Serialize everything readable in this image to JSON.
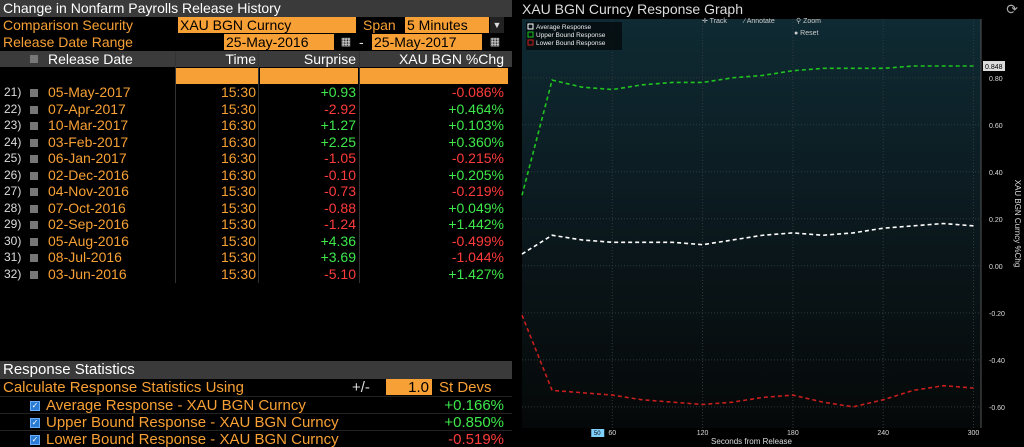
{
  "left_panel": {
    "title": "Change in Nonfarm Payrolls Release History",
    "comparison_label": "Comparison Security",
    "comparison_value": "XAU BGN Curncy",
    "span_label": "Span",
    "span_value": "5 Minutes",
    "range_label": "Release Date Range",
    "range_start": "25-May-2016",
    "range_sep": "-",
    "range_end": "25-May-2017",
    "columns": [
      "Release Date",
      "Time",
      "Surprise",
      "XAU BGN %Chg"
    ],
    "rows": [
      {
        "num": "21)",
        "date": "05-May-2017",
        "time": "15:30",
        "surprise": "+0.93",
        "chg": "-0.086%"
      },
      {
        "num": "22)",
        "date": "07-Apr-2017",
        "time": "15:30",
        "surprise": "-2.92",
        "chg": "+0.464%"
      },
      {
        "num": "23)",
        "date": "10-Mar-2017",
        "time": "16:30",
        "surprise": "+1.27",
        "chg": "+0.103%"
      },
      {
        "num": "24)",
        "date": "03-Feb-2017",
        "time": "16:30",
        "surprise": "+2.25",
        "chg": "+0.360%"
      },
      {
        "num": "25)",
        "date": "06-Jan-2017",
        "time": "16:30",
        "surprise": "-1.05",
        "chg": "-0.215%"
      },
      {
        "num": "26)",
        "date": "02-Dec-2016",
        "time": "16:30",
        "surprise": "-0.10",
        "chg": "+0.205%"
      },
      {
        "num": "27)",
        "date": "04-Nov-2016",
        "time": "15:30",
        "surprise": "-0.73",
        "chg": "-0.219%"
      },
      {
        "num": "28)",
        "date": "07-Oct-2016",
        "time": "15:30",
        "surprise": "-0.88",
        "chg": "+0.049%"
      },
      {
        "num": "29)",
        "date": "02-Sep-2016",
        "time": "15:30",
        "surprise": "-1.24",
        "chg": "+1.442%"
      },
      {
        "num": "30)",
        "date": "05-Aug-2016",
        "time": "15:30",
        "surprise": "+4.36",
        "chg": "-0.499%"
      },
      {
        "num": "31)",
        "date": "08-Jul-2016",
        "time": "15:30",
        "surprise": "+3.69",
        "chg": "-1.044%"
      },
      {
        "num": "32)",
        "date": "03-Jun-2016",
        "time": "15:30",
        "surprise": "-5.10",
        "chg": "+1.427%"
      }
    ],
    "response_stats": {
      "title": "Response Statistics",
      "calc_label": "Calculate Response Statistics Using",
      "plusminus": "+/-",
      "stdev_value": "1.0",
      "stdev_label": "St Devs",
      "items": [
        {
          "label": "Average Response - XAU BGN Curncy",
          "value": "+0.166%"
        },
        {
          "label": "Upper Bound Response - XAU BGN Curncy",
          "value": "+0.850%"
        },
        {
          "label": "Lower Bound Response - XAU BGN Curncy",
          "value": "-0.519%"
        }
      ]
    }
  },
  "right_panel": {
    "title": "XAU BGN Curncy Response Graph",
    "toolbar": {
      "track": "Track",
      "annotate": "Annotate",
      "zoom": "Zoom",
      "reset": "Reset"
    },
    "last_value_tag": "0.848",
    "cursor_x_tag": "50"
  },
  "colors": {
    "accent": "#f7a035",
    "positive": "#3ee84b",
    "negative": "#ff3b3b",
    "average": "#ffffff",
    "upper": "#1fc41f",
    "lower": "#c81e1e"
  },
  "chart_data": {
    "type": "line",
    "title": "XAU BGN Curncy Response Graph",
    "xlabel": "Seconds from Release",
    "ylabel": "XAU BGN Curncy %Chg",
    "xlim": [
      0,
      305
    ],
    "ylim": [
      -0.69,
      1.05
    ],
    "x_ticks": [
      60,
      120,
      180,
      240,
      300
    ],
    "y_ticks": [
      -0.6,
      -0.4,
      -0.2,
      0.0,
      0.2,
      0.4,
      0.6,
      0.8
    ],
    "y_tick_labels": [
      "-0.60",
      "-0.40",
      "-0.20",
      "0.00",
      "0.20",
      "0.40",
      "0.60",
      "0.80"
    ],
    "grid": true,
    "legend_position": "top-left",
    "x": [
      0,
      20,
      40,
      60,
      80,
      100,
      120,
      140,
      160,
      180,
      200,
      220,
      240,
      260,
      280,
      300
    ],
    "series": [
      {
        "name": "Average Response",
        "color": "#ffffff",
        "values": [
          0.05,
          0.13,
          0.11,
          0.1,
          0.1,
          0.1,
          0.09,
          0.11,
          0.13,
          0.14,
          0.13,
          0.14,
          0.16,
          0.17,
          0.18,
          0.17
        ]
      },
      {
        "name": "Upper Bound Response",
        "color": "#1fc41f",
        "values": [
          0.3,
          0.79,
          0.76,
          0.75,
          0.77,
          0.78,
          0.78,
          0.8,
          0.81,
          0.83,
          0.84,
          0.84,
          0.84,
          0.85,
          0.85,
          0.85
        ]
      },
      {
        "name": "Lower Bound Response",
        "color": "#c81e1e",
        "values": [
          -0.21,
          -0.53,
          -0.54,
          -0.55,
          -0.57,
          -0.58,
          -0.59,
          -0.58,
          -0.56,
          -0.55,
          -0.58,
          -0.6,
          -0.57,
          -0.53,
          -0.51,
          -0.52
        ]
      }
    ]
  }
}
